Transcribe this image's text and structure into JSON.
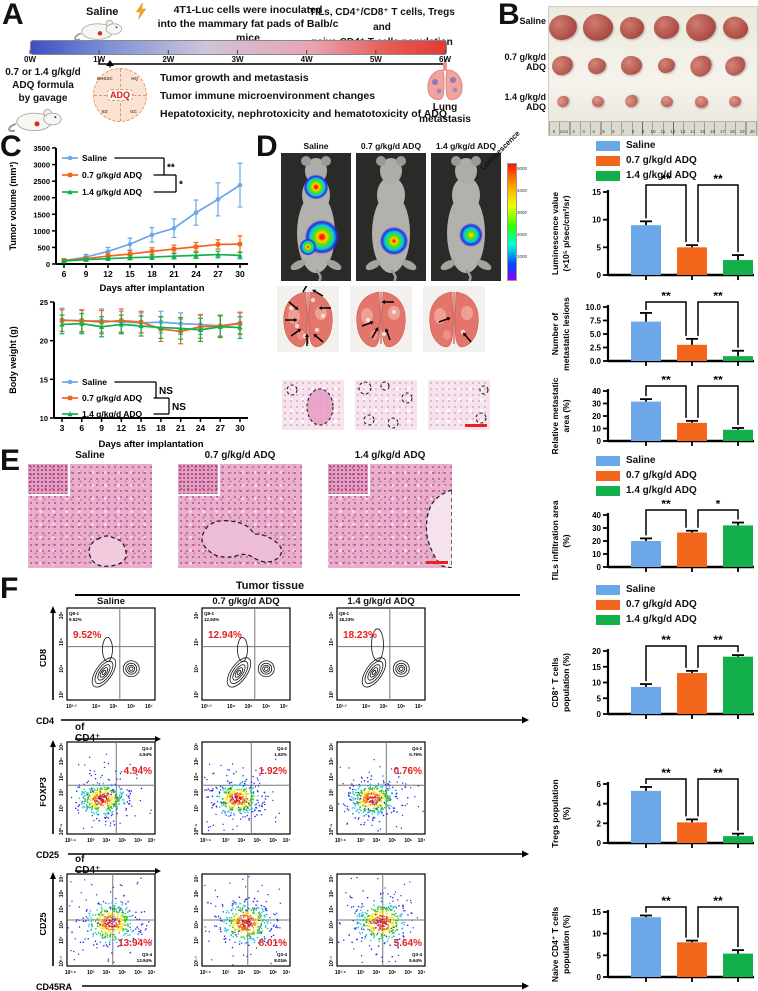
{
  "groups": [
    {
      "name": "Saline",
      "color": "#6CA7EA"
    },
    {
      "name": "0.7 g/kg/d ADQ",
      "color": "#F4651C"
    },
    {
      "name": "1.4 g/kg/d ADQ",
      "color": "#12AF4B"
    }
  ],
  "panel_a": {
    "label": "A",
    "saline_label": "Saline",
    "inoculation_line1": "4T1-Luc cells were inoculated",
    "inoculation_line2": "into the mammary fat pads  of Balb/c mice",
    "tils_line1": "TILs, CD4⁺/CD8⁺ T cells, Tregs and",
    "tils_line2": "naive CD4⁺ T cells population",
    "timeline_ticks": [
      "0W",
      "1W",
      "2W",
      "3W",
      "4W",
      "5W",
      "6W"
    ],
    "treatment_line1": "0.7 or 1.4 g/kg/d",
    "treatment_line2": "ADQ formula",
    "treatment_line3": "by gavage",
    "formula_center": "ADQ",
    "formula_components": [
      "BHSSC",
      "HQ",
      "EZ",
      "GC"
    ],
    "outcomes": [
      "Tumor growth and metastasis",
      "Tumor immune microenvironment changes",
      "Hepatotoxicity, nephrotoxicity and hematotoxicity of ADQ"
    ],
    "lung_label": "Lung metastasis"
  },
  "panel_b": {
    "label": "B",
    "rows": [
      "Saline",
      "0.7 g/kg/d ADQ",
      "1.4 g/kg/d ADQ"
    ],
    "tumors_per_row": 6,
    "ruler_numbers": [
      "0",
      "1cm",
      "2",
      "3",
      "4",
      "5",
      "6",
      "7",
      "8",
      "9",
      "10",
      "11",
      "12",
      "13",
      "14",
      "15",
      "16",
      "17",
      "18",
      "19",
      "20"
    ]
  },
  "panel_c": {
    "label": "C"
  },
  "panel_d": {
    "label": "D",
    "columns": [
      "Saline",
      "0.7 g/kg/d ADQ",
      "1.4 g/kg/d ADQ"
    ],
    "colorbar_label": "Luminescence",
    "colorbar_ticks": [
      "5000",
      "4000",
      "3000",
      "2000",
      "1000"
    ]
  },
  "panel_e": {
    "label": "E",
    "columns": [
      "Saline",
      "0.7 g/kg/d ADQ",
      "1.4 g/kg/d ADQ"
    ]
  },
  "panel_f": {
    "label": "F",
    "header": "Tumor tissue",
    "columns": [
      "Saline",
      "0.7 g/kg/d ADQ",
      "1.4 g/kg/d ADQ"
    ]
  },
  "chart_data": {
    "tumor_volume": {
      "type": "line",
      "xlabel": "Days after implantation",
      "ylabel": "Tumor volume (mm³)",
      "x": [
        6,
        9,
        12,
        15,
        18,
        21,
        24,
        27,
        30
      ],
      "ylim": [
        0,
        3500
      ],
      "yticks": [
        0,
        500,
        1000,
        1500,
        2000,
        2500,
        3000,
        3500
      ],
      "series": [
        {
          "name": "Saline",
          "color": "#6CA7EA",
          "values": [
            100,
            210,
            380,
            600,
            880,
            1080,
            1550,
            1950,
            2380
          ],
          "errors": [
            60,
            80,
            120,
            180,
            220,
            280,
            380,
            500,
            660
          ]
        },
        {
          "name": "0.7 g/kg/d ADQ",
          "color": "#F4651C",
          "values": [
            110,
            160,
            240,
            300,
            380,
            450,
            520,
            590,
            600
          ],
          "errors": [
            40,
            60,
            90,
            100,
            110,
            120,
            130,
            140,
            250
          ]
        },
        {
          "name": "1.4 g/kg/d ADQ",
          "color": "#12AF4B",
          "values": [
            90,
            130,
            160,
            190,
            210,
            235,
            260,
            285,
            260
          ],
          "errors": [
            30,
            40,
            50,
            60,
            70,
            80,
            90,
            100,
            100
          ]
        }
      ],
      "sig": [
        "**",
        "*"
      ]
    },
    "body_weight": {
      "type": "line",
      "xlabel": "Days after implantation",
      "ylabel": "Body weight (g)",
      "x": [
        3,
        6,
        9,
        12,
        15,
        18,
        21,
        24,
        27,
        30
      ],
      "ylim": [
        10,
        25
      ],
      "yticks": [
        10,
        15,
        20,
        25
      ],
      "series": [
        {
          "name": "Saline",
          "color": "#6CA7EA",
          "values": [
            22.7,
            22.5,
            22.6,
            22.4,
            22.3,
            22.4,
            22.2,
            22.1,
            21.9,
            22.3
          ],
          "errors": [
            1.5,
            1.4,
            1.5,
            1.4,
            1.3,
            1.4,
            1.4,
            1.3,
            1.3,
            1.4
          ]
        },
        {
          "name": "0.7 g/kg/d ADQ",
          "color": "#F4651C",
          "values": [
            22.6,
            22.6,
            22.4,
            22.6,
            22.4,
            21.5,
            21.2,
            21.8,
            21.9,
            22.2
          ],
          "errors": [
            1.4,
            1.4,
            1.5,
            1.5,
            1.4,
            1.6,
            1.6,
            1.5,
            1.4,
            1.4
          ]
        },
        {
          "name": "1.4 g/kg/d ADQ",
          "color": "#12AF4B",
          "values": [
            22.1,
            22.2,
            21.8,
            22.1,
            21.9,
            21.7,
            21.6,
            21.4,
            21.8,
            21.7
          ],
          "errors": [
            1.2,
            1.3,
            1.3,
            1.2,
            1.3,
            1.4,
            1.4,
            1.5,
            1.4,
            1.4
          ]
        }
      ],
      "sig": [
        "NS",
        "NS"
      ]
    },
    "luminescence": {
      "type": "bar",
      "ylabel_lines": [
        "Luminescence value",
        "(×10⁵ p/sec/cm²/sr)"
      ],
      "categories": [
        "Saline",
        "0.7 g/kg/d ADQ",
        "1.4 g/kg/d ADQ"
      ],
      "values": [
        9.0,
        5.0,
        2.7
      ],
      "errors": [
        0.7,
        0.4,
        0.9
      ],
      "ylim": [
        0,
        15
      ],
      "yticks": [
        "0",
        "5",
        "10",
        "15"
      ],
      "sig": [
        "**",
        "**"
      ]
    },
    "metastatic_lesions": {
      "type": "bar",
      "ylabel_lines": [
        "Number of",
        "metastatic lesions"
      ],
      "categories": [
        "Saline",
        "0.7 g/kg/d ADQ",
        "1.4 g/kg/d ADQ"
      ],
      "values": [
        7.3,
        3.0,
        0.9
      ],
      "errors": [
        1.6,
        1.1,
        1.0
      ],
      "ylim": [
        0,
        10
      ],
      "yticks": [
        "0.0",
        "2.5",
        "5.0",
        "7.5",
        "10.0"
      ],
      "sig": [
        "**",
        "**"
      ]
    },
    "metastatic_area": {
      "type": "bar",
      "ylabel_lines": [
        "Relative metastatic",
        "area (%)"
      ],
      "categories": [
        "Saline",
        "0.7 g/kg/d ADQ",
        "1.4 g/kg/d ADQ"
      ],
      "values": [
        31.5,
        14.5,
        9.0
      ],
      "errors": [
        2.0,
        1.6,
        1.4
      ],
      "ylim": [
        0,
        40
      ],
      "yticks": [
        "0",
        "10",
        "20",
        "30",
        "40"
      ],
      "sig": [
        "**",
        "**"
      ]
    },
    "tils": {
      "type": "bar",
      "ylabel_lines": [
        "TILs infiltration area",
        "(%)"
      ],
      "categories": [
        "Saline",
        "0.7 g/kg/d ADQ",
        "1.4 g/kg/d ADQ"
      ],
      "values": [
        20.0,
        26.5,
        32.0
      ],
      "errors": [
        2.0,
        1.4,
        2.2
      ],
      "ylim": [
        0,
        40
      ],
      "yticks": [
        "0",
        "10",
        "20",
        "30",
        "40"
      ],
      "sig": [
        "**",
        "*"
      ]
    },
    "cd8": {
      "type": "bar",
      "ylabel_lines": [
        "CD8⁺ T cells",
        "population (%)"
      ],
      "categories": [
        "Saline",
        "0.7 g/kg/d ADQ",
        "1.4 g/kg/d ADQ"
      ],
      "values": [
        8.6,
        13.0,
        18.2
      ],
      "errors": [
        0.9,
        0.7,
        0.5
      ],
      "ylim": [
        0,
        20
      ],
      "yticks": [
        "0",
        "5",
        "10",
        "15",
        "20"
      ],
      "sig": [
        "**",
        "**"
      ]
    },
    "tregs": {
      "type": "bar",
      "ylabel_lines": [
        "Tregs population",
        "(%)"
      ],
      "categories": [
        "Saline",
        "0.7 g/kg/d ADQ",
        "1.4 g/kg/d ADQ"
      ],
      "values": [
        5.3,
        2.1,
        0.7
      ],
      "errors": [
        0.4,
        0.3,
        0.25
      ],
      "ylim": [
        0,
        6
      ],
      "yticks": [
        "0",
        "2",
        "4",
        "6"
      ],
      "sig": [
        "**",
        "**"
      ]
    },
    "naive_cd4": {
      "type": "bar",
      "ylabel_lines": [
        "Naive CD4⁺ T cells",
        "population (%)"
      ],
      "categories": [
        "Saline",
        "0.7 g/kg/d ADQ",
        "1.4 g/kg/d ADQ"
      ],
      "values": [
        13.8,
        8.0,
        5.4
      ],
      "errors": [
        0.4,
        0.4,
        0.8
      ],
      "ylim": [
        0,
        15
      ],
      "yticks": [
        "0",
        "5",
        "10",
        "15"
      ],
      "sig": [
        "**",
        "**"
      ]
    },
    "flow_rows": [
      {
        "y_axis": "CD8",
        "x_axis": "CD4",
        "gate_label": "",
        "quadrant": "Q8-1",
        "percents": [
          "9.52%",
          "12.94%",
          "18.23%"
        ],
        "yticks": [
          "10⁶",
          "10⁵",
          "10⁴",
          "10³"
        ],
        "xticks": [
          "10²·²",
          "10⁴",
          "10⁵",
          "10⁶",
          "10⁷"
        ]
      },
      {
        "y_axis": "FOXP3",
        "x_axis": "CD25",
        "gate_label": "of CD4⁺ gate",
        "quadrant": "Q4-2",
        "percents": [
          "4.94%",
          "1.92%",
          "0.76%"
        ],
        "yticks": [
          "10⁶",
          "10⁵",
          "10⁴",
          "10³",
          "10²",
          "10⁰·⁵"
        ],
        "xticks": [
          "10¹·⁵",
          "10³",
          "10⁴",
          "10⁵",
          "10⁶",
          "10⁷"
        ]
      },
      {
        "y_axis": "CD25",
        "x_axis": "CD45RA",
        "gate_label": "of CD4⁺ gate",
        "quadrant": "Q3-4",
        "percents": [
          "13.94%",
          "8.01%",
          "5.64%"
        ],
        "yticks": [
          "10⁷",
          "10⁶",
          "10⁵",
          "10⁴",
          "10³",
          "10¹·¹"
        ],
        "xticks": [
          "10¹·⁵",
          "10³",
          "10⁴",
          "10⁵",
          "10⁶",
          "10⁷"
        ]
      }
    ]
  }
}
